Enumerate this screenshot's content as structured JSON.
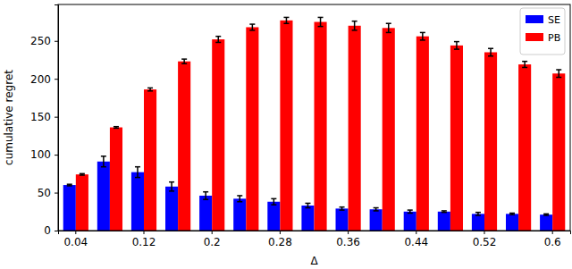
{
  "chart_data": {
    "type": "bar",
    "x_label": "Δ",
    "y_label": "cumulative regret",
    "categories": [
      "0.04",
      null,
      "0.12",
      null,
      "0.2",
      null,
      "0.28",
      null,
      "0.36",
      null,
      "0.44",
      null,
      "0.52",
      null,
      "0.6"
    ],
    "series": [
      {
        "name": "SE",
        "color": "#0000ff",
        "values": [
          60,
          91,
          77,
          58,
          46,
          42,
          38,
          33,
          29,
          28,
          25,
          25,
          22,
          22,
          21
        ],
        "errors": [
          1,
          7,
          7,
          6,
          5,
          4,
          4,
          3,
          2,
          2,
          2,
          1,
          2,
          1,
          1
        ]
      },
      {
        "name": "PB",
        "color": "#ff0000",
        "values": [
          74,
          136,
          186,
          223,
          252,
          268,
          277,
          275,
          270,
          267,
          256,
          244,
          235,
          219,
          207
        ],
        "errors": [
          1,
          1,
          2,
          3,
          4,
          4,
          4,
          6,
          6,
          6,
          5,
          5,
          5,
          4,
          5
        ]
      }
    ],
    "ylim": [
      0,
      298
    ],
    "yticks": [
      0,
      50,
      100,
      150,
      200,
      250
    ],
    "grid": false,
    "legend": "upper right"
  }
}
